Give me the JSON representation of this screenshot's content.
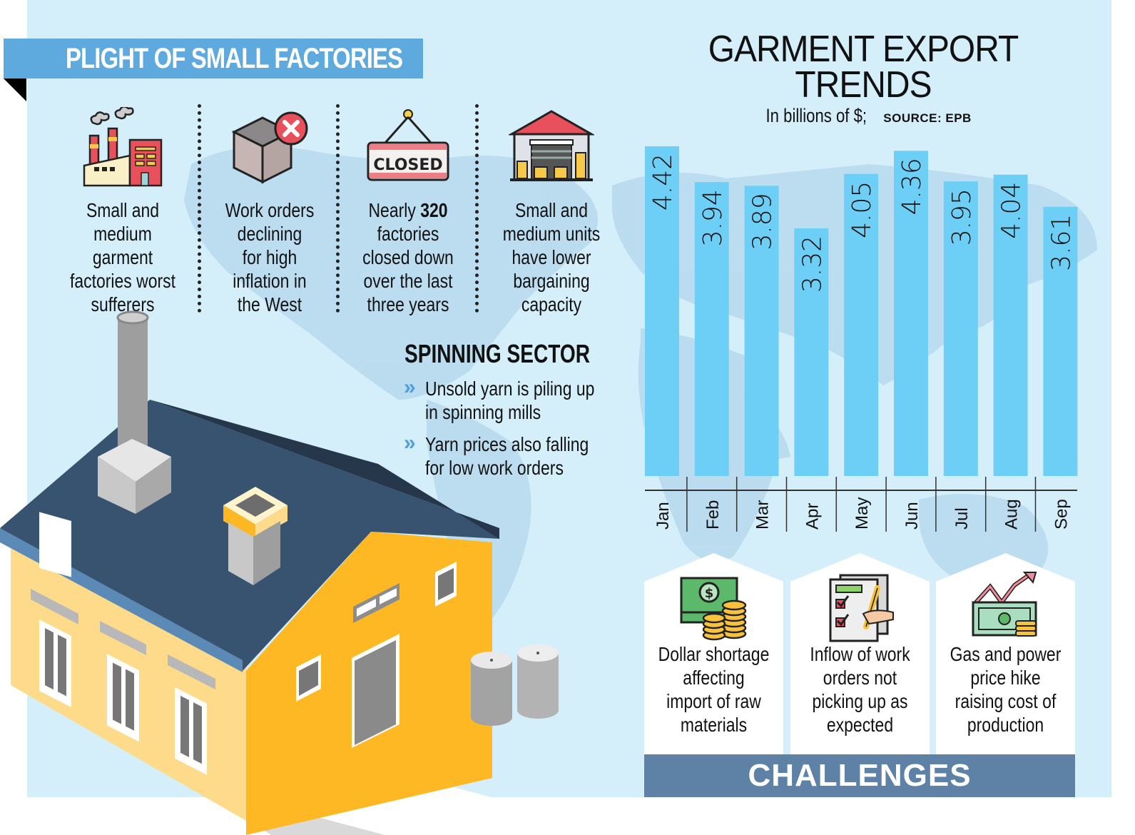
{
  "header": {
    "title": "PLIGHT OF SMALL FACTORIES"
  },
  "plight_items": [
    {
      "icon": "factory-icon",
      "lines": [
        "Small and",
        "medium",
        "garment",
        "factories worst",
        "sufferers"
      ]
    },
    {
      "icon": "box-cancel-icon",
      "lines": [
        "Work orders",
        "declining",
        "for high",
        "inflation in",
        "the West"
      ]
    },
    {
      "icon": "closed-sign-icon",
      "sign_text": "CLOSED",
      "lines_pre": "Nearly ",
      "lines_bold": "320",
      "lines": [
        "factories",
        "closed down",
        "over the last",
        "three years"
      ]
    },
    {
      "icon": "warehouse-icon",
      "lines": [
        "Small and",
        "medium units",
        "have lower",
        "bargaining",
        "capacity"
      ]
    }
  ],
  "spinning": {
    "title": "SPINNING SECTOR",
    "bullet_icon": "double-chevron-right-icon",
    "items": [
      {
        "lines": [
          "Unsold yarn is piling up",
          "in spinning mills"
        ]
      },
      {
        "lines": [
          "Yarn prices also falling",
          "for low work orders"
        ]
      }
    ]
  },
  "chart_data": {
    "type": "bar",
    "title": "GARMENT EXPORT TRENDS",
    "title_lines": [
      "GARMENT EXPORT",
      "TRENDS"
    ],
    "subtitle": "In billions of $;",
    "source": "SOURCE: EPB",
    "categories": [
      "Jan",
      "Feb",
      "Mar",
      "Apr",
      "May",
      "Jun",
      "Jul",
      "Aug",
      "Sep"
    ],
    "values": [
      4.42,
      3.94,
      3.89,
      3.32,
      4.05,
      4.36,
      3.95,
      4.04,
      3.61
    ],
    "value_labels": [
      "4.42",
      "3.94",
      "3.89",
      "3.32",
      "4.05",
      "4.36",
      "3.95",
      "4.04",
      "3.61"
    ],
    "xlabel": "",
    "ylabel": "",
    "ylim": [
      0,
      4.42
    ],
    "grid": false,
    "legend": "none",
    "bar_color": "#6ecff6"
  },
  "challenges": {
    "label": "CHALLENGES",
    "items": [
      {
        "icon": "money-coins-icon",
        "lines": [
          "Dollar shortage",
          "affecting",
          "import of raw",
          "materials"
        ]
      },
      {
        "icon": "checklist-pen-icon",
        "lines": [
          "Inflow of work",
          "orders not",
          "picking up as",
          "expected"
        ]
      },
      {
        "icon": "price-rise-money-icon",
        "lines": [
          "Gas and power",
          "price hike",
          "raising cost of",
          "production"
        ]
      }
    ]
  },
  "colors": {
    "background": "#d4eefa",
    "ribbon": "#5ea9dd",
    "bar": "#6ecff6",
    "challenges_bar": "#5e82a6",
    "roof": "#37536f",
    "wall_front": "#fedb8a",
    "wall_side": "#fdb823"
  }
}
